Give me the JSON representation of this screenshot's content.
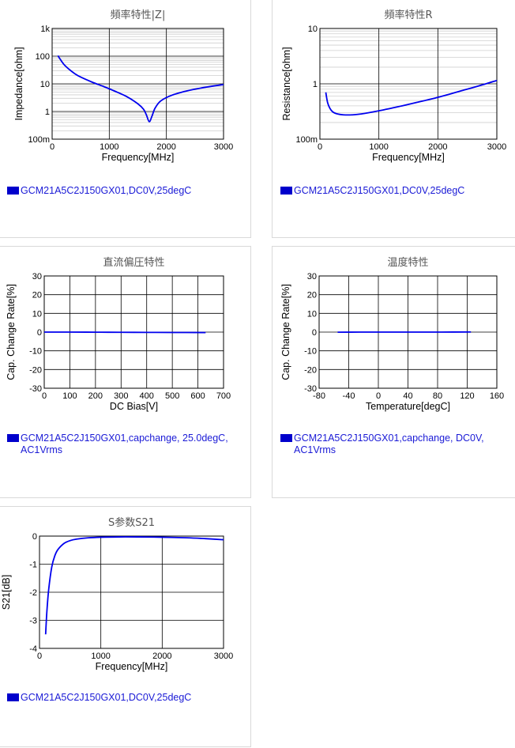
{
  "charts": [
    {
      "type": "line",
      "title": "頻率特性|Z|",
      "xlabel": "Frequency[MHz]",
      "ylabel": "Impedance[ohm]",
      "xlim": [
        0,
        3000
      ],
      "xticks": [
        0,
        1000,
        2000,
        3000
      ],
      "xtick_labels": [
        "0",
        "1000",
        "2000",
        "3000"
      ],
      "yscale": "log",
      "ylim": [
        0.1,
        1000
      ],
      "yticks": [
        0.1,
        1,
        10,
        100,
        1000
      ],
      "ytick_labels": [
        "100m",
        "1",
        "10",
        "100",
        "1k"
      ],
      "grid": true,
      "series": [
        {
          "name": "GCM21A5C2J150GX01,DC0V,25degC",
          "color": "#0000ee",
          "x": [
            100,
            200,
            300,
            400,
            500,
            700,
            900,
            1100,
            1300,
            1500,
            1600,
            1650,
            1700,
            1750,
            1800,
            1900,
            2100,
            2400,
            2700,
            3000
          ],
          "y": [
            104,
            52,
            33,
            23,
            17.5,
            11.5,
            8,
            5.4,
            3.5,
            1.9,
            1.2,
            0.75,
            0.43,
            0.7,
            1.3,
            2.4,
            3.9,
            5.8,
            7.6,
            9.4
          ]
        }
      ],
      "legend": "bottom-left"
    },
    {
      "type": "line",
      "title": "頻率特性R",
      "xlabel": "Frequency[MHz]",
      "ylabel": "Resistance[ohm]",
      "xlim": [
        0,
        3000
      ],
      "xticks": [
        0,
        1000,
        2000,
        3000
      ],
      "xtick_labels": [
        "0",
        "1000",
        "2000",
        "3000"
      ],
      "yscale": "log",
      "ylim": [
        0.1,
        10
      ],
      "yticks": [
        0.1,
        1,
        10
      ],
      "ytick_labels": [
        "100m",
        "1",
        "10"
      ],
      "grid": true,
      "series": [
        {
          "name": "GCM21A5C2J150GX01,DC0V,25degC",
          "color": "#0000ee",
          "x": [
            100,
            130,
            170,
            220,
            300,
            400,
            550,
            700,
            1000,
            1300,
            1600,
            2000,
            2400,
            2700,
            3000
          ],
          "y": [
            0.7,
            0.46,
            0.36,
            0.31,
            0.285,
            0.275,
            0.275,
            0.285,
            0.325,
            0.38,
            0.45,
            0.57,
            0.75,
            0.92,
            1.15
          ]
        }
      ],
      "legend": "bottom-left"
    },
    {
      "type": "line",
      "title": "直流偏圧特性",
      "xlabel": "DC Bias[V]",
      "ylabel": "Cap. Change Rate[%]",
      "xlim": [
        0,
        700
      ],
      "xticks": [
        0,
        100,
        200,
        300,
        400,
        500,
        600,
        700
      ],
      "xtick_labels": [
        "0",
        "100",
        "200",
        "300",
        "400",
        "500",
        "600",
        "700"
      ],
      "ylim": [
        -30,
        30
      ],
      "yticks": [
        -30,
        -20,
        -10,
        0,
        10,
        20,
        30
      ],
      "ytick_labels": [
        "-30",
        "-20",
        "-10",
        "0",
        "10",
        "20",
        "30"
      ],
      "grid": true,
      "series": [
        {
          "name": "GCM21A5C2J150GX01,capchange, 25.0degC, AC1Vrms",
          "color": "#0000ee",
          "x": [
            0,
            100,
            200,
            300,
            400,
            500,
            630
          ],
          "y": [
            0,
            0,
            -0.05,
            -0.1,
            -0.15,
            -0.2,
            -0.25
          ]
        }
      ],
      "legend": "bottom-left"
    },
    {
      "type": "line",
      "title": "温度特性",
      "xlabel": "Temperature[degC]",
      "ylabel": "Cap. Change Rate[%]",
      "xlim": [
        -80,
        160
      ],
      "xticks": [
        -80,
        -40,
        0,
        40,
        80,
        120,
        160
      ],
      "xtick_labels": [
        "-80",
        "-40",
        "0",
        "40",
        "80",
        "120",
        "160"
      ],
      "ylim": [
        -30,
        30
      ],
      "yticks": [
        -30,
        -20,
        -10,
        0,
        10,
        20,
        30
      ],
      "ytick_labels": [
        "-30",
        "-20",
        "-10",
        "0",
        "10",
        "20",
        "30"
      ],
      "grid": true,
      "series": [
        {
          "name": "GCM21A5C2J150GX01,capchange, DC0V, AC1Vrms",
          "color": "#0000ee",
          "x": [
            -55,
            -25,
            0,
            25,
            50,
            85,
            125
          ],
          "y": [
            -0.05,
            0,
            0,
            0,
            0,
            0,
            0.05
          ]
        }
      ],
      "legend": "bottom-left"
    },
    {
      "type": "line",
      "title": "S参数S21",
      "xlabel": "Frequency[MHz]",
      "ylabel": "S21[dB]",
      "xlim": [
        0,
        3000
      ],
      "xticks": [
        0,
        1000,
        2000,
        3000
      ],
      "xtick_labels": [
        "0",
        "1000",
        "2000",
        "3000"
      ],
      "ylim": [
        -4,
        0
      ],
      "yticks": [
        -4,
        -3,
        -2,
        -1,
        0
      ],
      "ytick_labels": [
        "-4",
        "-3",
        "-2",
        "-1",
        "0"
      ],
      "grid": true,
      "series": [
        {
          "name": "GCM21A5C2J150GX01,DC0V,25degC",
          "color": "#0000ee",
          "x": [
            100,
            120,
            150,
            200,
            250,
            300,
            400,
            500,
            600,
            800,
            1000,
            1300,
            1600,
            2000,
            2400,
            2700,
            3000
          ],
          "y": [
            -3.5,
            -2.7,
            -1.9,
            -1.1,
            -0.7,
            -0.48,
            -0.26,
            -0.16,
            -0.11,
            -0.06,
            -0.04,
            -0.03,
            -0.03,
            -0.04,
            -0.06,
            -0.09,
            -0.13
          ]
        }
      ],
      "legend": "bottom-left"
    }
  ]
}
